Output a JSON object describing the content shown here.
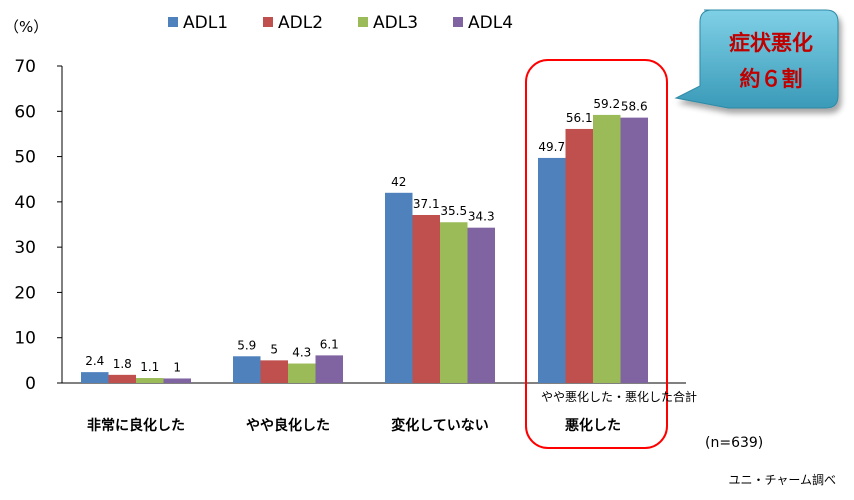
{
  "chart_data": {
    "type": "bar",
    "categories": [
      "非常に良化した",
      "やや良化した",
      "変化していない",
      "悪化した"
    ],
    "series": [
      {
        "name": "ADL1",
        "color": "#4f81bd",
        "values": [
          2.4,
          5.9,
          42,
          49.7
        ],
        "labels": [
          "2.4",
          "5.9",
          "42",
          "49.7"
        ]
      },
      {
        "name": "ADL2",
        "color": "#c0504d",
        "values": [
          1.8,
          5,
          37.1,
          56.1
        ],
        "labels": [
          "1.8",
          "5",
          "37.1",
          "56.1"
        ]
      },
      {
        "name": "ADL3",
        "color": "#9bbb59",
        "values": [
          1.1,
          4.3,
          35.5,
          59.2
        ],
        "labels": [
          "1.1",
          "4.3",
          "35.5",
          "59.2"
        ]
      },
      {
        "name": "ADL4",
        "color": "#8064a2",
        "values": [
          1,
          6.1,
          34.3,
          58.6
        ],
        "labels": [
          "1",
          "6.1",
          "34.3",
          "58.6"
        ]
      }
    ],
    "ylim": [
      0,
      70
    ],
    "yticks": [
      0,
      10,
      20,
      30,
      40,
      50,
      60,
      70
    ],
    "y_unit": "（%）",
    "legend": "top",
    "grid": false
  },
  "annotations": {
    "callout_line1": "症状悪化",
    "callout_line2": "約６割",
    "group_note": "やや悪化した・悪化した合計",
    "sample": "(n=639)",
    "source": "ユニ・チャーム調べ"
  },
  "colors": {
    "highlight": "#ff0000",
    "callout_fill": "#4bacc6",
    "callout_text": "#c00000"
  }
}
